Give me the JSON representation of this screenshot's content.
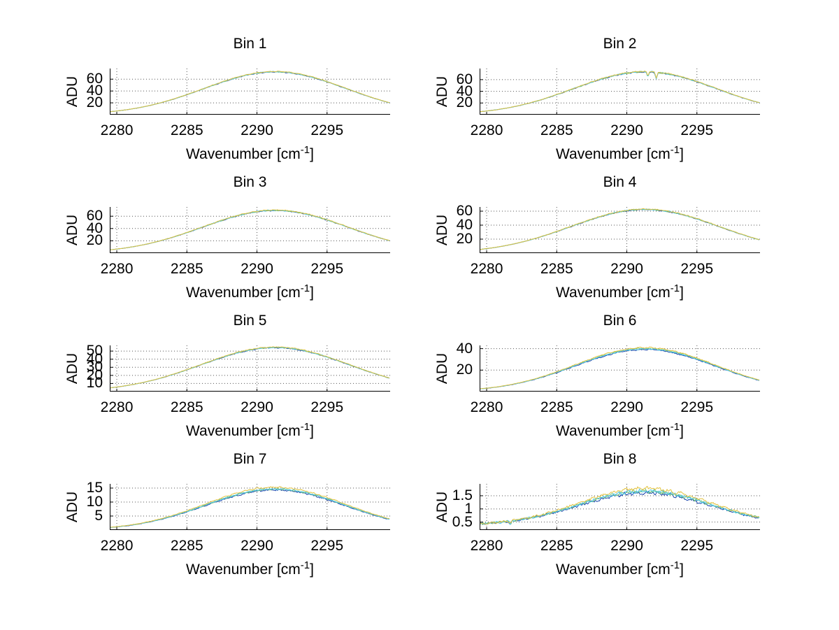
{
  "figure": {
    "background": "#ffffff",
    "ylabel": "ADU",
    "xlabel_parts": {
      "pre": "Wavenumber [cm",
      "sup": "-1",
      "post": "]"
    }
  },
  "chart_data": {
    "type": "line",
    "layout": "4 rows x 2 cols of subplots",
    "x_label": "Wavenumber [cm^-1]",
    "y_label": "ADU",
    "x_range": [
      2279.5,
      2299.5
    ],
    "x_ticks": [
      2280,
      2285,
      2290,
      2295
    ],
    "grid": true,
    "legend": "none shown",
    "series": [
      {
        "name": "blue-trace",
        "color": "#1A46AE"
      },
      {
        "name": "green-trace",
        "color": "#6FBF73"
      },
      {
        "name": "cyan-trace",
        "color": "#4FC8E8"
      },
      {
        "name": "yellow-trace",
        "color": "#E2C23F"
      }
    ],
    "grid_color": "#555555",
    "axis_color": "#000000",
    "sample_x": [
      2280,
      2282.5,
      2285,
      2287.5,
      2290,
      2292.5,
      2295,
      2297.5,
      2300
    ],
    "subplots": [
      {
        "title": "Bin 1",
        "yticks": [
          20,
          40,
          60
        ],
        "ylim": [
          0,
          78
        ],
        "peak_adu": 73,
        "center": 2291.3,
        "sigma": 5.1,
        "baseline": 0,
        "samples_adu": [
          6.3,
          16.5,
          34.0,
          55.3,
          70.7,
          71.0,
          56.1,
          34.9,
          17.0
        ],
        "noise": 0.012,
        "noise_floor": 0.2,
        "sep_frac": {
          "yellow": 0,
          "cyan": 0.005,
          "green": 0.008,
          "blue": 0.012
        },
        "dips": []
      },
      {
        "title": "Bin 2",
        "yticks": [
          20,
          40,
          60
        ],
        "ylim": [
          0,
          79
        ],
        "peak_adu": 74,
        "center": 2291.3,
        "sigma": 5.1,
        "baseline": 0,
        "samples_adu": [
          6.4,
          16.7,
          34.5,
          56.1,
          71.7,
          72.0,
          56.9,
          35.4,
          17.3
        ],
        "noise": 0.016,
        "noise_floor": 0.2,
        "sep_frac": {
          "yellow": 0,
          "cyan": 0.005,
          "green": 0.008,
          "blue": 0.012
        },
        "dips": [
          {
            "x": 2291.5,
            "depth": 0.1,
            "width": 0.08
          },
          {
            "x": 2292.1,
            "depth": 0.15,
            "width": 0.08
          }
        ]
      },
      {
        "title": "Bin 3",
        "yticks": [
          20,
          40,
          60
        ],
        "ylim": [
          0,
          75
        ],
        "peak_adu": 70,
        "center": 2291.3,
        "sigma": 5.2,
        "baseline": 0,
        "samples_adu": [
          6.6,
          16.7,
          33.6,
          53.6,
          67.8,
          68.2,
          54.4,
          34.4,
          17.3
        ],
        "noise": 0.015,
        "noise_floor": 0.2,
        "sep_frac": {
          "yellow": 0,
          "cyan": 0.005,
          "green": 0.008,
          "blue": 0.012
        },
        "dips": []
      },
      {
        "title": "Bin 4",
        "yticks": [
          20,
          40,
          60
        ],
        "ylim": [
          0,
          66
        ],
        "peak_adu": 63,
        "center": 2291.3,
        "sigma": 5.3,
        "baseline": 0,
        "samples_adu": [
          6.5,
          15.9,
          31.1,
          48.7,
          61.1,
          61.4,
          49.4,
          31.8,
          16.4
        ],
        "noise": 0.015,
        "noise_floor": 0.2,
        "sep_frac": {
          "yellow": 0,
          "cyan": 0.005,
          "green": 0.008,
          "blue": 0.012
        },
        "dips": []
      },
      {
        "title": "Bin 5",
        "yticks": [
          10,
          20,
          30,
          40,
          50
        ],
        "ylim": [
          0,
          57
        ],
        "peak_adu": 55,
        "center": 2291.3,
        "sigma": 5.3,
        "baseline": 0,
        "samples_adu": [
          5.7,
          13.9,
          27.2,
          42.5,
          53.4,
          53.6,
          43.1,
          27.8,
          14.3
        ],
        "noise": 0.014,
        "noise_floor": 0.2,
        "sep_frac": {
          "yellow": 0,
          "cyan": 0.007,
          "green": 0.01,
          "blue": 0.015
        },
        "dips": []
      },
      {
        "title": "Bin 6",
        "yticks": [
          20,
          40
        ],
        "ylim": [
          0,
          43
        ],
        "peak_adu": 41,
        "center": 2291.3,
        "sigma": 5.0,
        "baseline": 0,
        "samples_adu": [
          3.2,
          8.7,
          18.5,
          30.7,
          39.6,
          39.8,
          31.2,
          19.0,
          9.0
        ],
        "noise": 0.02,
        "noise_floor": 0.2,
        "sep_frac": {
          "yellow": 0,
          "cyan": 0.028,
          "green": 0.02,
          "blue": 0.045
        },
        "dips": []
      },
      {
        "title": "Bin 7",
        "yticks": [
          5,
          10,
          15
        ],
        "ylim": [
          0,
          16.5
        ],
        "peak_adu": 15.3,
        "center": 2291.3,
        "sigma": 5.0,
        "baseline": 0,
        "samples_adu": [
          1.2,
          3.3,
          6.9,
          11.5,
          14.8,
          14.9,
          11.6,
          7.1,
          3.4
        ],
        "noise": 0.022,
        "noise_floor": 0.3,
        "sep_frac": {
          "yellow": 0,
          "cyan": 0.038,
          "green": 0.045,
          "blue": 0.065
        },
        "dips": []
      },
      {
        "title": "Bin 8",
        "yticks": [
          0.5,
          1,
          1.5
        ],
        "ylim": [
          0.2,
          1.95
        ],
        "peak_adu": 1.78,
        "center": 2291.3,
        "sigma": 4.7,
        "baseline": 0.38,
        "samples_adu": [
          0.46,
          0.62,
          0.95,
          1.39,
          1.73,
          1.74,
          1.41,
          0.97,
          0.63
        ],
        "noise": 0.05,
        "noise_floor": 0.55,
        "sep_frac": {
          "yellow": 0,
          "cyan": 0.055,
          "green": 0.06,
          "blue": 0.095
        },
        "dips": [
          {
            "x": 2281.7,
            "depth": 0.07,
            "width": 0.08
          }
        ]
      }
    ]
  }
}
